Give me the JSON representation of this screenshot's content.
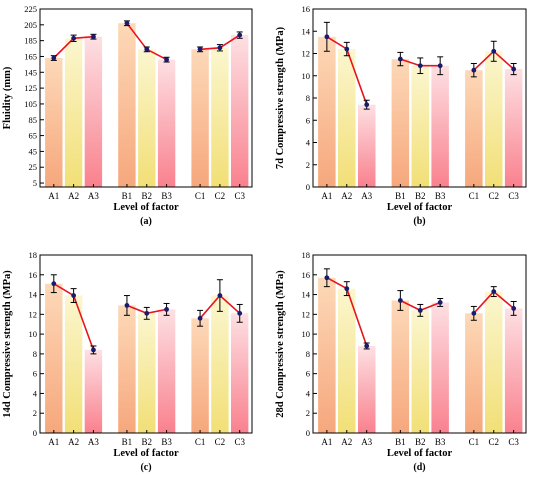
{
  "colors": {
    "orange_top": "#fdd9b8",
    "orange_bottom": "#f6a77c",
    "yellow_top": "#fbf6cf",
    "yellow_bottom": "#f2df76",
    "pink_top": "#fde0e3",
    "pink_bottom": "#f9818e",
    "line": "#e8141c",
    "marker": "#1a1a6e",
    "error_bar": "#000000"
  },
  "chart_data": [
    {
      "type": "bar",
      "panel_label": "(a)",
      "xlabel": "Level of factor",
      "ylabel": "Fluidity (mm)",
      "ylim": [
        0,
        225
      ],
      "yticks": [
        5,
        25,
        45,
        65,
        85,
        105,
        125,
        145,
        165,
        185,
        205,
        225
      ],
      "categories": [
        "A1",
        "A2",
        "A3",
        "B1",
        "B2",
        "B3",
        "C1",
        "C2",
        "C3"
      ],
      "values": [
        163,
        188,
        190,
        207,
        174,
        161,
        174,
        176,
        192
      ],
      "errors": [
        3,
        4,
        3,
        3,
        3,
        3,
        3,
        4,
        4
      ]
    },
    {
      "type": "bar",
      "panel_label": "(b)",
      "xlabel": "Level of factor",
      "ylabel": "7d Compressive strength (MPa)",
      "ylim": [
        0,
        16
      ],
      "yticks": [
        0,
        2,
        4,
        6,
        8,
        10,
        12,
        14,
        16
      ],
      "categories": [
        "A1",
        "A2",
        "A3",
        "B1",
        "B2",
        "B3",
        "C1",
        "C2",
        "C3"
      ],
      "values": [
        13.5,
        12.4,
        7.4,
        11.5,
        10.9,
        10.9,
        10.5,
        12.2,
        10.6
      ],
      "errors": [
        1.3,
        0.6,
        0.4,
        0.6,
        0.7,
        0.8,
        0.6,
        0.9,
        0.5
      ]
    },
    {
      "type": "bar",
      "panel_label": "(c)",
      "xlabel": "Level of factor",
      "ylabel": "14d Compressive strength (MPa)",
      "ylim": [
        0,
        18
      ],
      "yticks": [
        0,
        2,
        4,
        6,
        8,
        10,
        12,
        14,
        16,
        18
      ],
      "categories": [
        "A1",
        "A2",
        "A3",
        "B1",
        "B2",
        "B3",
        "C1",
        "C2",
        "C3"
      ],
      "values": [
        15.1,
        13.9,
        8.4,
        12.9,
        12.1,
        12.5,
        11.6,
        13.9,
        12.1
      ],
      "errors": [
        0.9,
        0.7,
        0.4,
        1.0,
        0.6,
        0.6,
        0.8,
        1.6,
        0.9
      ]
    },
    {
      "type": "bar",
      "panel_label": "(d)",
      "xlabel": "Level of factor",
      "ylabel": "28d Compressive strength (MPa)",
      "ylim": [
        0,
        18
      ],
      "yticks": [
        0,
        2,
        4,
        6,
        8,
        10,
        12,
        14,
        16,
        18
      ],
      "categories": [
        "A1",
        "A2",
        "A3",
        "B1",
        "B2",
        "B3",
        "C1",
        "C2",
        "C3"
      ],
      "values": [
        15.7,
        14.6,
        8.8,
        13.4,
        12.4,
        13.2,
        12.1,
        14.3,
        12.6
      ],
      "errors": [
        0.9,
        0.7,
        0.3,
        1.0,
        0.6,
        0.4,
        0.7,
        0.5,
        0.7
      ]
    }
  ]
}
